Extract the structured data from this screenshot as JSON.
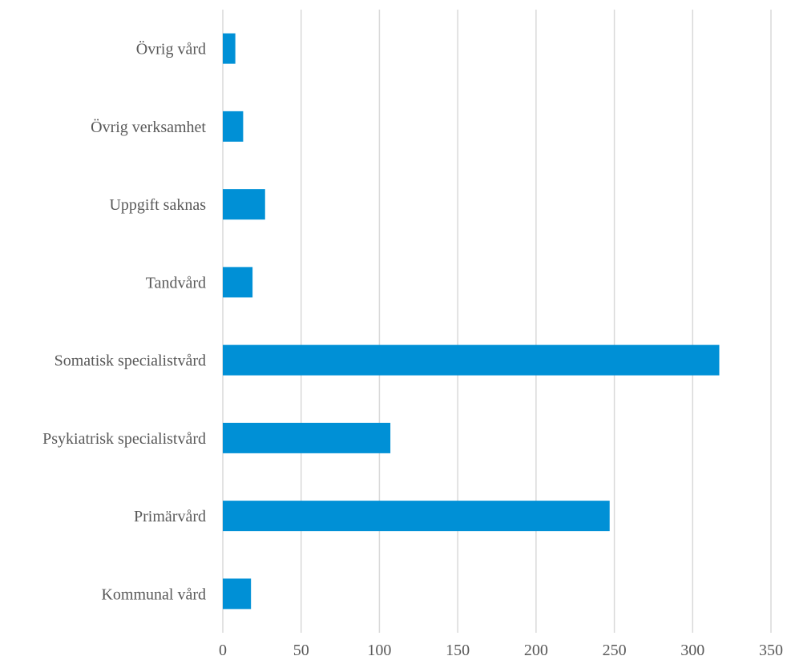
{
  "chart_data": {
    "type": "bar",
    "orientation": "horizontal",
    "title": "",
    "xlabel": "",
    "ylabel": "",
    "categories": [
      "Kommunal vård",
      "Primärvård",
      "Psykiatrisk specialistvård",
      "Somatisk specialistvård",
      "Tandvård",
      "Uppgift saknas",
      "Övrig verksamhet",
      "Övrig vård"
    ],
    "values": [
      18,
      247,
      107,
      317,
      19,
      27,
      13,
      8
    ],
    "xlim": [
      0,
      350
    ],
    "xticks": [
      0,
      50,
      100,
      150,
      200,
      250,
      300,
      350
    ],
    "grid": "vertical",
    "legend": "none",
    "bar_color": "#0090d6",
    "grid_color": "#d9d9d9",
    "text_color": "#595959"
  }
}
